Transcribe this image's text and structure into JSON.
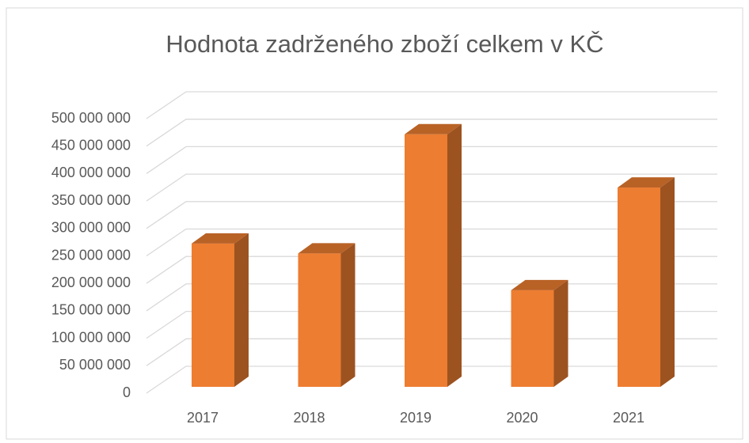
{
  "chart_data": {
    "type": "bar3d",
    "title": "Hodnota zadrženého zboží celkem v KČ",
    "categories": [
      "2017",
      "2018",
      "2019",
      "2020",
      "2021"
    ],
    "values": [
      261000000,
      243000000,
      460000000,
      176000000,
      363000000
    ],
    "color": "#ed7d31",
    "ylim": [
      0,
      500000000
    ],
    "yticks": [
      0,
      {
        "value": 50000000,
        "label": "50 000 000"
      },
      {
        "value": 100000000,
        "label": "100 000 000"
      },
      {
        "value": 150000000,
        "label": "150 000 000"
      },
      {
        "value": 200000000,
        "label": "200 000 000"
      },
      {
        "value": 250000000,
        "label": "250 000 000"
      },
      {
        "value": 300000000,
        "label": "300 000 000"
      },
      {
        "value": 350000000,
        "label": "350 000 000"
      },
      {
        "value": 400000000,
        "label": "400 000 000"
      },
      {
        "value": 450000000,
        "label": "450 000 000"
      },
      {
        "value": 500000000,
        "label": "500 000 000"
      }
    ],
    "grid": true
  }
}
